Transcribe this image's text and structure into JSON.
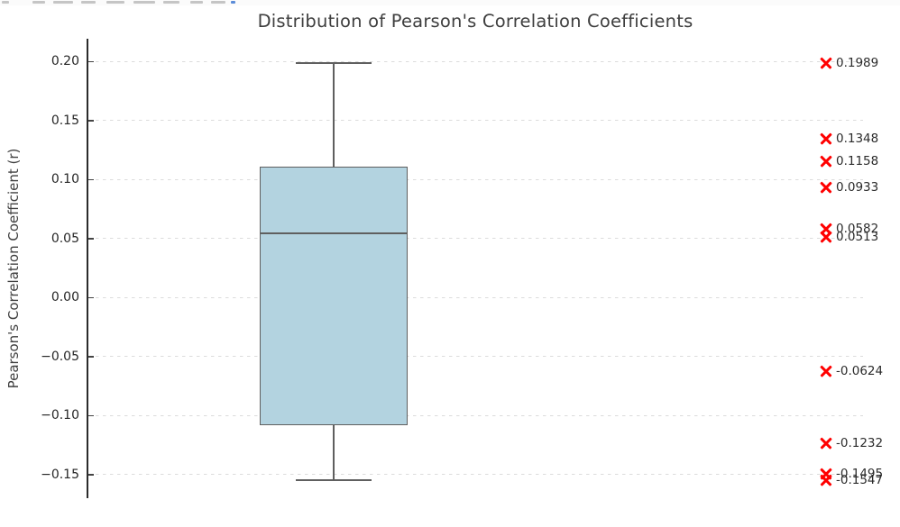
{
  "chart_data": {
    "type": "box",
    "title": "Distribution of Pearson's Correlation Coefficients",
    "ylabel": "Pearson's Correlation Coefficient (r)",
    "xlabel": "",
    "ylim": [
      -0.17,
      0.218
    ],
    "grid": {
      "axis": "y",
      "style": "dashed",
      "color": "#dcdcdc"
    },
    "legend": "none",
    "y_axis": {
      "ticks": [
        {
          "value": 0.2,
          "label": "0.20"
        },
        {
          "value": 0.15,
          "label": "0.15"
        },
        {
          "value": 0.1,
          "label": "0.10"
        },
        {
          "value": 0.05,
          "label": "0.05"
        },
        {
          "value": 0.0,
          "label": "0.00"
        },
        {
          "value": -0.05,
          "label": "−0.05"
        },
        {
          "value": -0.1,
          "label": "−0.10"
        },
        {
          "value": -0.15,
          "label": "−0.15"
        }
      ]
    },
    "values": [
      0.1989,
      0.1348,
      0.1158,
      0.0933,
      0.0582,
      0.0513,
      -0.0624,
      -0.1232,
      -0.1495,
      -0.1547
    ],
    "box_stats": {
      "whisker_high": 0.1989,
      "q3": 0.111,
      "median": 0.0548,
      "q1": -0.108,
      "whisker_low": -0.1547
    },
    "points": [
      {
        "value": 0.1989,
        "label": "0.1989"
      },
      {
        "value": 0.1348,
        "label": "0.1348"
      },
      {
        "value": 0.1158,
        "label": "0.1158"
      },
      {
        "value": 0.0933,
        "label": "0.0933"
      },
      {
        "value": 0.0582,
        "label": "0.0582"
      },
      {
        "value": 0.0513,
        "label": "0.0513"
      },
      {
        "value": -0.0624,
        "label": "-0.0624"
      },
      {
        "value": -0.1232,
        "label": "-0.1232"
      },
      {
        "value": -0.1495,
        "label": "-0.1495"
      },
      {
        "value": -0.1547,
        "label": "-0.1547"
      }
    ],
    "colors": {
      "box_fill": "#b3d3e0",
      "box_edge": "#5f5f5f",
      "marker": "#ff0000",
      "grid": "#dcdcdc",
      "text": "#3f3f3f",
      "spine": "#2b2b2b"
    },
    "marker_shape": "x"
  }
}
